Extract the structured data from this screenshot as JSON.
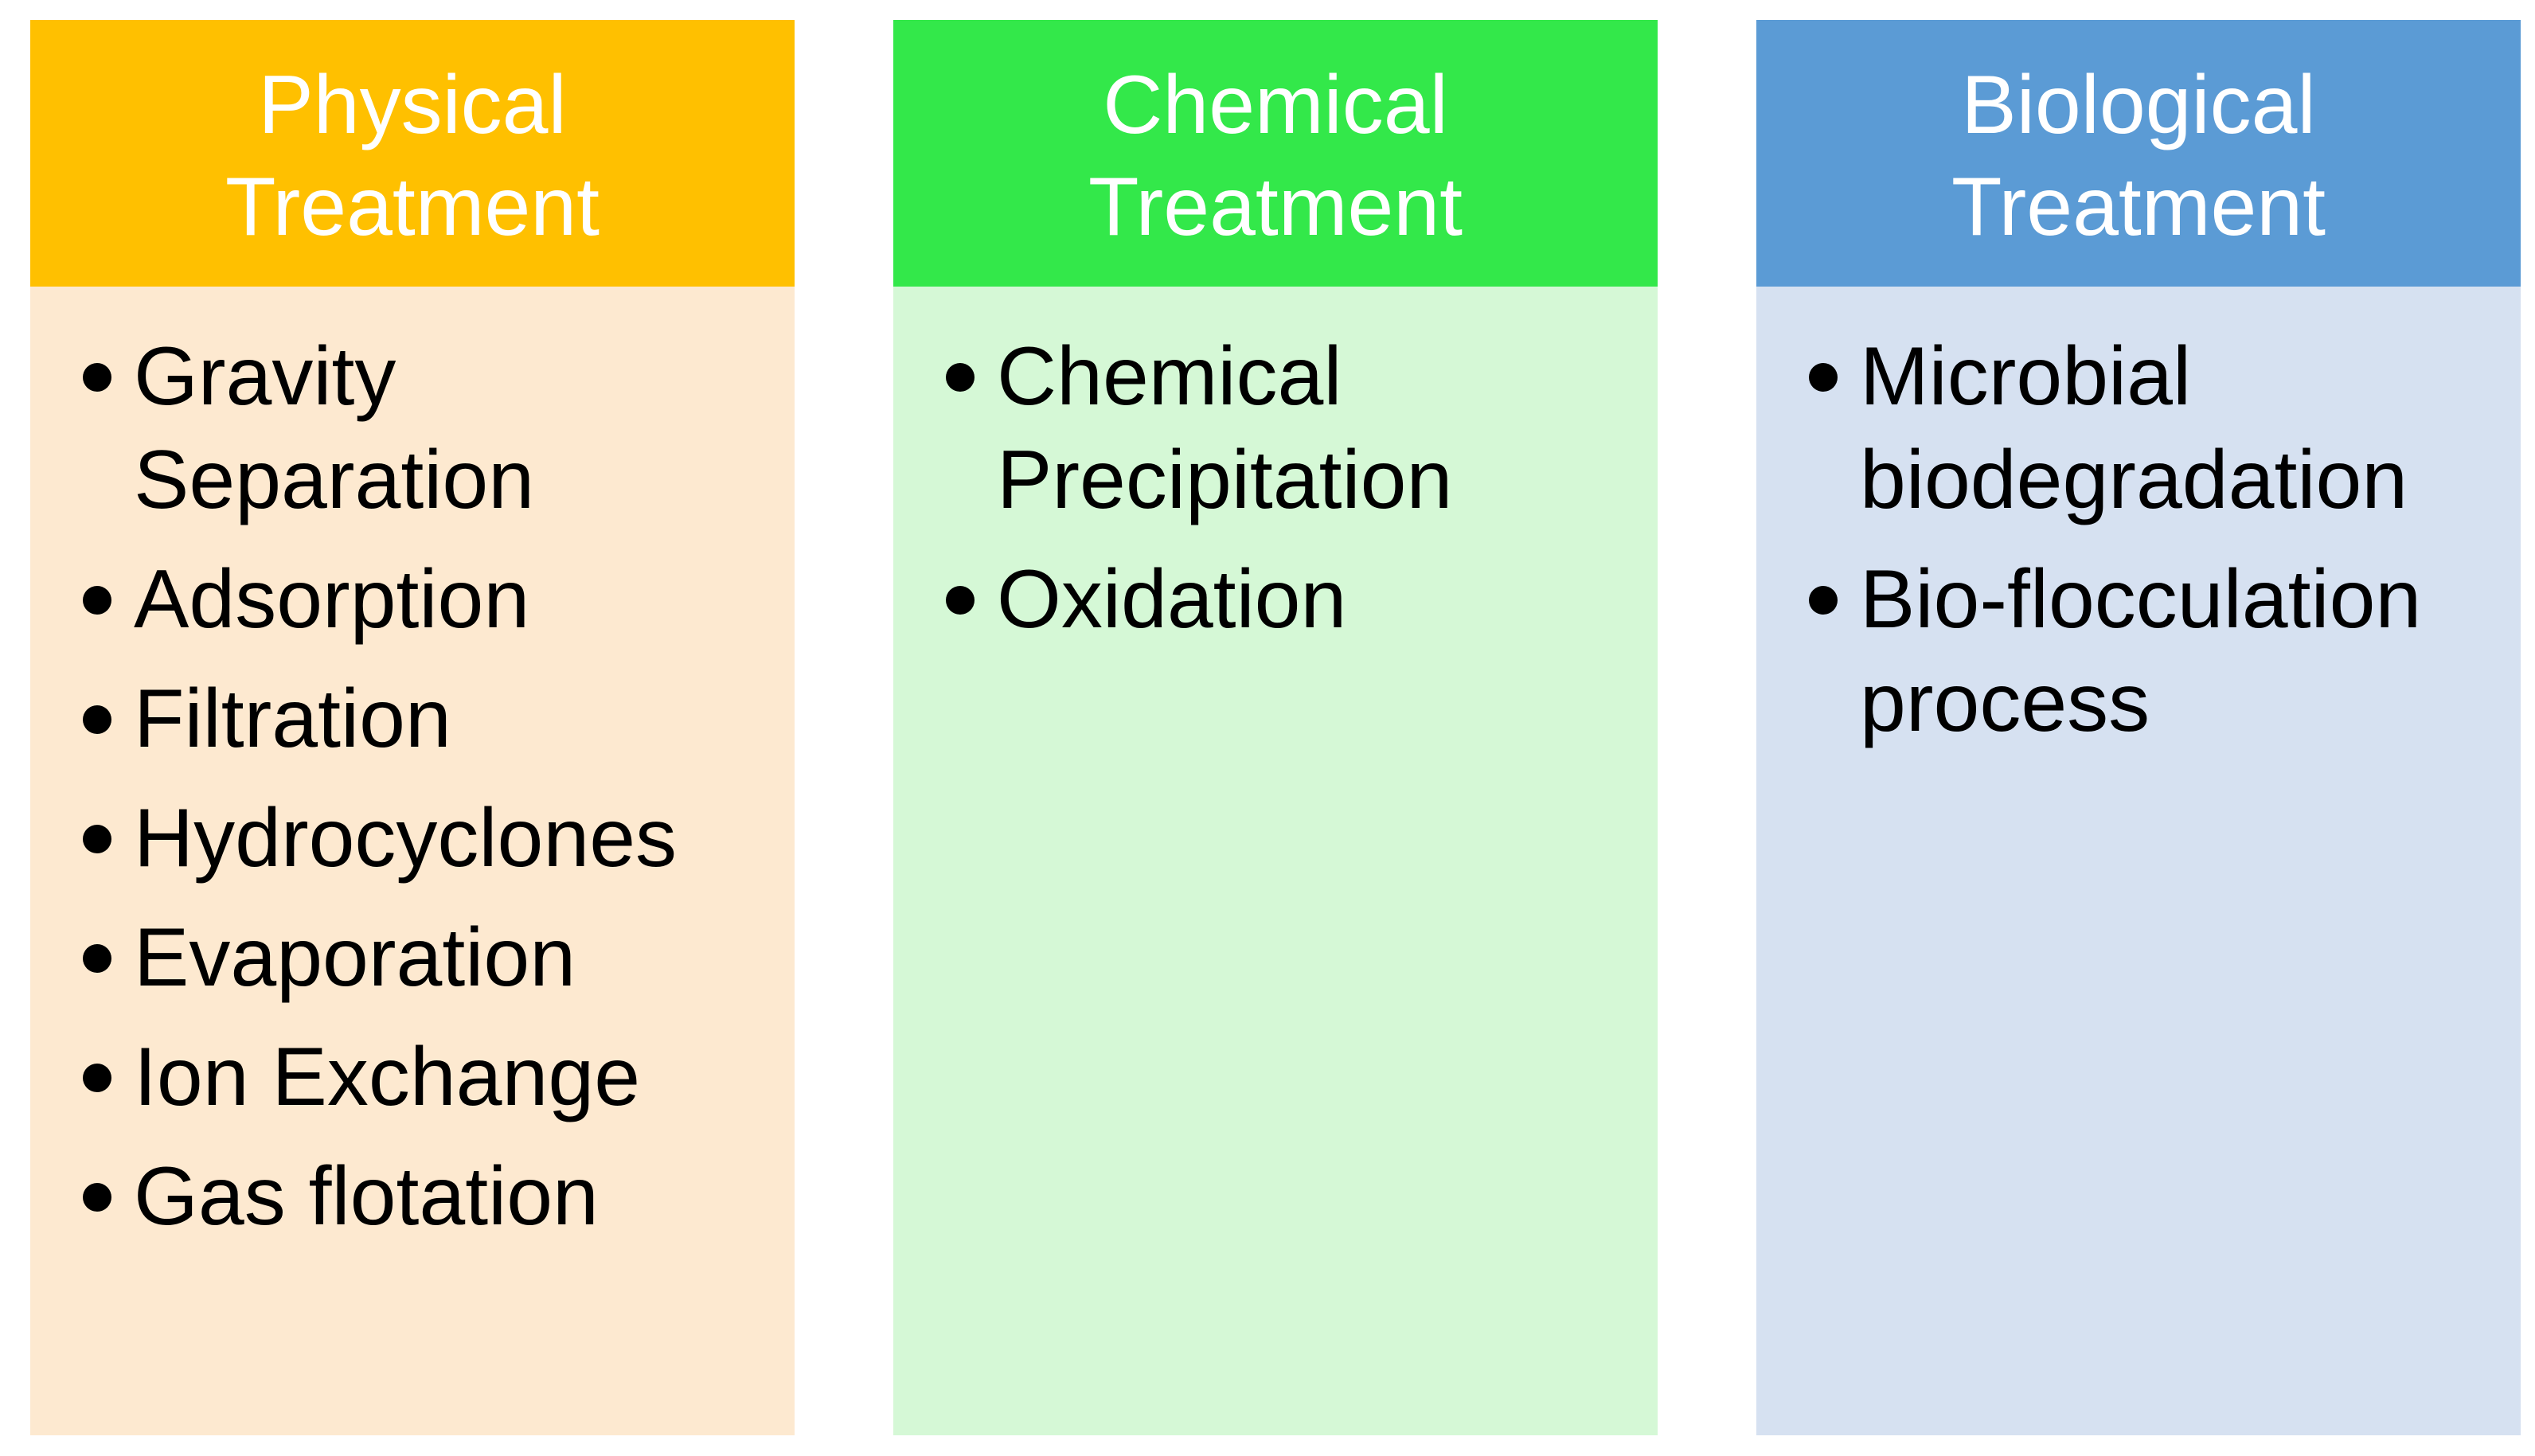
{
  "columns": [
    {
      "header_line1": "Physical",
      "header_line2": "Treatment",
      "header_color": "#FFC000",
      "body_color": "#FDE9D0",
      "items": [
        "Gravity Separation",
        "Adsorption",
        "Filtration",
        "Hydrocyclones",
        "Evaporation",
        "Ion Exchange",
        "Gas flotation"
      ]
    },
    {
      "header_line1": "Chemical",
      "header_line2": "Treatment",
      "header_color": "#33E84A",
      "body_color": "#D5F8D6",
      "items": [
        "Chemical Precipitation",
        "Oxidation"
      ]
    },
    {
      "header_line1": "Biological",
      "header_line2": "Treatment",
      "header_color": "#5B9BD5",
      "body_color": "#D6E1F1",
      "items": [
        "Microbial biodegradation",
        "Bio-flocculation process"
      ]
    }
  ]
}
